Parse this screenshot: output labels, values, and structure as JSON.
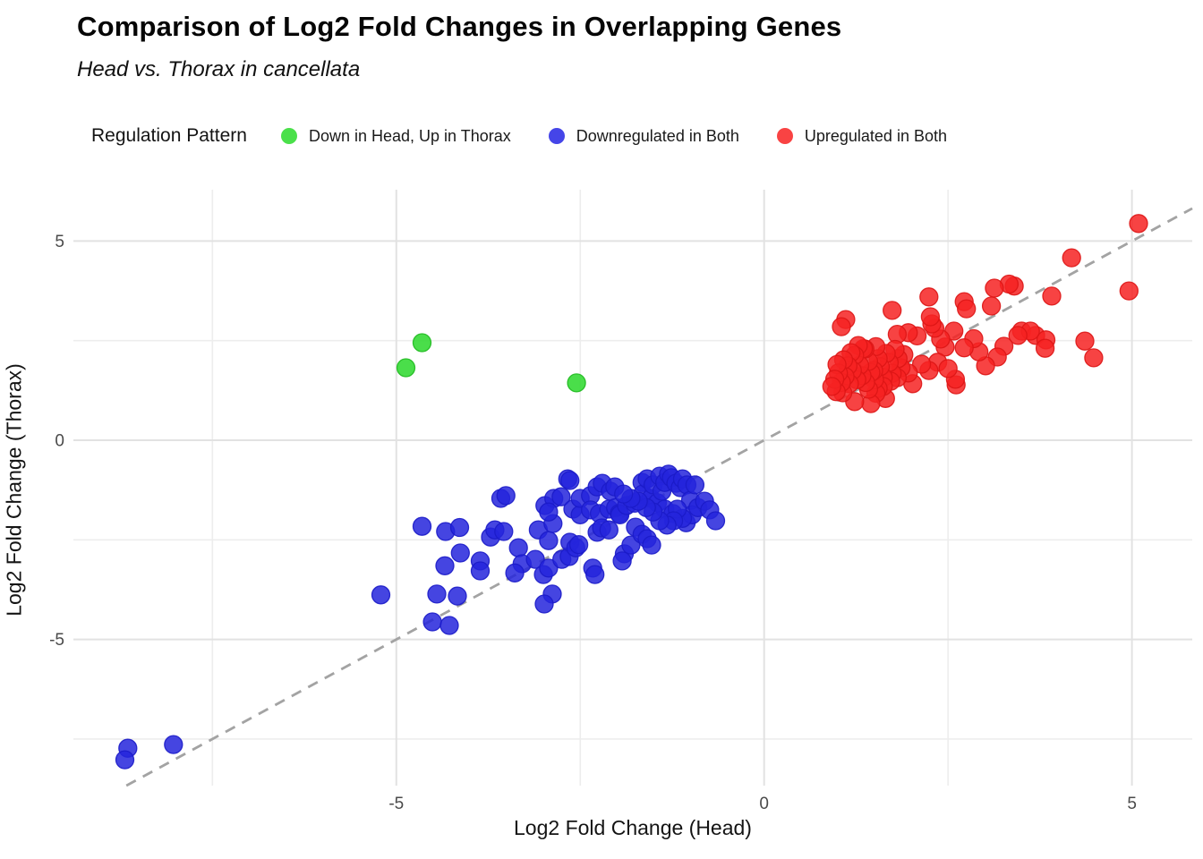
{
  "header": {
    "title": "Comparison of Log2 Fold Changes in Overlapping Genes",
    "subtitle": "Head vs. Thorax in cancellata"
  },
  "legend": {
    "title": "Regulation Pattern",
    "position": "top",
    "items": [
      {
        "label": "Down in Head, Up in Thorax",
        "color": "#4ae04a"
      },
      {
        "label": "Downregulated in Both",
        "color": "#4545e8"
      },
      {
        "label": "Upregulated in Both",
        "color": "#f94343"
      }
    ]
  },
  "colors": {
    "background": "#ffffff",
    "grid_major": "#e2e2e2",
    "grid_minor": "#ededed",
    "reference_line": "#a3a3a3",
    "tick_text": "#4a4a4a",
    "green_fill": "#2ad82a",
    "green_stroke": "#1fb91f",
    "blue_fill": "#2424dc",
    "blue_stroke": "#1b1bc8",
    "red_fill": "#f62222",
    "red_stroke": "#dd1515"
  },
  "chart_data": {
    "type": "scatter",
    "title": "Comparison of Log2 Fold Changes in Overlapping Genes",
    "subtitle": "Head vs. Thorax in cancellata",
    "xlabel": "Log2 Fold Change (Head)",
    "ylabel": "Log2 Fold Change (Thorax)",
    "xlim": [
      -9.39,
      5.82
    ],
    "ylim": [
      -8.67,
      6.29
    ],
    "x_ticks": [
      -5,
      0,
      5
    ],
    "y_ticks": [
      -5,
      0,
      5
    ],
    "x_minor": [
      -7.5,
      -2.5,
      2.5
    ],
    "y_minor": [
      -7.5,
      -2.5,
      2.5
    ],
    "grid": true,
    "legend_position": "top",
    "reference_line": {
      "kind": "identity",
      "style": "dashed",
      "color": "#a3a3a3"
    },
    "point_radius_px": 10,
    "point_alpha": 0.85,
    "series": [
      {
        "name": "Down in Head, Up in Thorax",
        "fill": "#2ad82a",
        "stroke": "#1fb91f",
        "points": [
          [
            -4.65,
            2.45
          ],
          [
            -4.87,
            1.82
          ],
          [
            -2.55,
            1.44
          ]
        ]
      },
      {
        "name": "Downregulated in Both",
        "fill": "#2424dc",
        "stroke": "#1b1bc8",
        "points": [
          [
            -8.65,
            -7.73
          ],
          [
            -8.69,
            -8.02
          ],
          [
            -8.03,
            -7.64
          ],
          [
            -5.21,
            -3.88
          ],
          [
            -4.65,
            -2.16
          ],
          [
            -4.33,
            -2.29
          ],
          [
            -4.14,
            -2.19
          ],
          [
            -4.34,
            -3.15
          ],
          [
            -4.13,
            -2.83
          ],
          [
            -4.45,
            -3.86
          ],
          [
            -4.17,
            -3.91
          ],
          [
            -4.51,
            -4.56
          ],
          [
            -4.28,
            -4.65
          ],
          [
            -3.86,
            -3.03
          ],
          [
            -3.86,
            -3.28
          ],
          [
            -3.72,
            -2.43
          ],
          [
            -3.66,
            -2.25
          ],
          [
            -3.58,
            -1.46
          ],
          [
            -3.51,
            -1.39
          ],
          [
            -3.54,
            -2.29
          ],
          [
            -3.34,
            -2.7
          ],
          [
            -3.29,
            -3.1
          ],
          [
            -3.39,
            -3.33
          ],
          [
            -3.11,
            -2.99
          ],
          [
            -3.07,
            -2.25
          ],
          [
            -2.98,
            -1.64
          ],
          [
            -2.93,
            -2.52
          ],
          [
            -2.87,
            -2.09
          ],
          [
            -2.86,
            -1.46
          ],
          [
            -2.76,
            -1.42
          ],
          [
            -2.67,
            -0.97
          ],
          [
            -2.93,
            -1.8
          ],
          [
            -3.0,
            -3.37
          ],
          [
            -2.93,
            -3.21
          ],
          [
            -2.88,
            -3.86
          ],
          [
            -2.99,
            -4.11
          ],
          [
            -2.75,
            -2.99
          ],
          [
            -2.65,
            -2.92
          ],
          [
            -2.64,
            -2.56
          ],
          [
            -2.56,
            -2.7
          ],
          [
            -2.64,
            -1.01
          ],
          [
            -2.6,
            -1.73
          ],
          [
            -2.52,
            -2.62
          ],
          [
            -2.5,
            -1.87
          ],
          [
            -2.5,
            -1.46
          ],
          [
            -2.36,
            -1.39
          ],
          [
            -2.36,
            -1.75
          ],
          [
            -2.27,
            -1.17
          ],
          [
            -2.24,
            -1.84
          ],
          [
            -2.2,
            -1.08
          ],
          [
            -2.11,
            -1.73
          ],
          [
            -2.09,
            -1.28
          ],
          [
            -2.03,
            -1.17
          ],
          [
            -2.27,
            -2.31
          ],
          [
            -2.21,
            -2.2
          ],
          [
            -2.11,
            -2.25
          ],
          [
            -2.33,
            -3.21
          ],
          [
            -2.3,
            -3.37
          ],
          [
            -2.02,
            -1.69
          ],
          [
            -1.97,
            -1.84
          ],
          [
            -1.96,
            -1.87
          ],
          [
            -1.9,
            -2.85
          ],
          [
            -1.93,
            -3.03
          ],
          [
            -1.81,
            -2.63
          ],
          [
            -1.87,
            -1.64
          ],
          [
            -1.75,
            -2.18
          ],
          [
            -1.66,
            -2.36
          ],
          [
            -1.59,
            -2.47
          ],
          [
            -1.53,
            -2.63
          ],
          [
            -1.76,
            -1.58
          ],
          [
            -1.66,
            -1.06
          ],
          [
            -1.65,
            -1.35
          ],
          [
            -1.59,
            -0.97
          ],
          [
            -1.54,
            -1.46
          ],
          [
            -1.51,
            -1.12
          ],
          [
            -1.45,
            -1.57
          ],
          [
            -1.42,
            -0.9
          ],
          [
            -1.39,
            -1.28
          ],
          [
            -1.35,
            -1.73
          ],
          [
            -1.35,
            -1.06
          ],
          [
            -1.3,
            -0.85
          ],
          [
            -1.26,
            -0.94
          ],
          [
            -1.24,
            -1.84
          ],
          [
            -1.2,
            -1.08
          ],
          [
            -1.14,
            -1.19
          ],
          [
            -1.11,
            -0.97
          ],
          [
            -1.06,
            -2.07
          ],
          [
            -1.05,
            -1.12
          ],
          [
            -1.0,
            -1.51
          ],
          [
            -0.98,
            -1.87
          ],
          [
            -0.94,
            -1.12
          ],
          [
            -0.9,
            -1.69
          ],
          [
            -0.81,
            -1.53
          ],
          [
            -0.74,
            -1.75
          ],
          [
            -0.66,
            -2.02
          ],
          [
            -1.11,
            -1.96
          ],
          [
            -1.18,
            -1.73
          ],
          [
            -1.23,
            -2.02
          ],
          [
            -1.32,
            -2.13
          ],
          [
            -1.42,
            -2.02
          ],
          [
            -1.51,
            -1.8
          ],
          [
            -1.6,
            -1.69
          ],
          [
            -1.71,
            -1.53
          ],
          [
            -1.81,
            -1.46
          ],
          [
            -1.91,
            -1.35
          ]
        ]
      },
      {
        "name": "Upregulated in Both",
        "fill": "#f62222",
        "stroke": "#dd1515",
        "points": [
          [
            5.09,
            5.44
          ],
          [
            4.18,
            4.58
          ],
          [
            4.96,
            3.75
          ],
          [
            3.91,
            3.62
          ],
          [
            3.4,
            3.87
          ],
          [
            3.33,
            3.92
          ],
          [
            3.13,
            3.82
          ],
          [
            3.09,
            3.37
          ],
          [
            3.5,
            2.74
          ],
          [
            3.69,
            2.63
          ],
          [
            3.83,
            2.52
          ],
          [
            4.36,
            2.49
          ],
          [
            4.48,
            2.07
          ],
          [
            3.82,
            2.31
          ],
          [
            3.62,
            2.74
          ],
          [
            3.45,
            2.63
          ],
          [
            3.26,
            2.36
          ],
          [
            3.17,
            2.09
          ],
          [
            3.01,
            1.87
          ],
          [
            2.92,
            2.22
          ],
          [
            2.85,
            2.55
          ],
          [
            2.72,
            2.32
          ],
          [
            2.72,
            3.48
          ],
          [
            2.75,
            3.3
          ],
          [
            2.58,
            2.74
          ],
          [
            2.46,
            2.34
          ],
          [
            2.4,
            2.54
          ],
          [
            2.36,
            1.96
          ],
          [
            2.32,
            2.81
          ],
          [
            2.28,
            2.92
          ],
          [
            2.26,
            3.1
          ],
          [
            2.24,
            3.6
          ],
          [
            2.24,
            1.75
          ],
          [
            2.14,
            1.91
          ],
          [
            2.08,
            2.62
          ],
          [
            2.02,
            1.42
          ],
          [
            1.96,
            2.7
          ],
          [
            1.96,
            1.69
          ],
          [
            1.9,
            2.15
          ],
          [
            1.86,
            1.82
          ],
          [
            1.82,
            2.05
          ],
          [
            1.81,
            2.66
          ],
          [
            1.81,
            1.57
          ],
          [
            1.78,
            2.28
          ],
          [
            1.74,
            3.26
          ],
          [
            1.74,
            1.68
          ],
          [
            1.72,
            1.48
          ],
          [
            1.7,
            1.95
          ],
          [
            1.66,
            2.18
          ],
          [
            1.65,
            1.05
          ],
          [
            1.62,
            1.58
          ],
          [
            1.62,
            1.35
          ],
          [
            1.58,
            1.85
          ],
          [
            1.55,
            2.05
          ],
          [
            1.55,
            1.3
          ],
          [
            1.52,
            2.35
          ],
          [
            1.52,
            1.18
          ],
          [
            1.5,
            1.52
          ],
          [
            1.49,
            1.75
          ],
          [
            1.45,
            1.7
          ],
          [
            1.45,
            0.92
          ],
          [
            1.42,
            1.98
          ],
          [
            1.42,
            1.28
          ],
          [
            1.38,
            1.45
          ],
          [
            1.37,
            2.29
          ],
          [
            1.35,
            2.3
          ],
          [
            1.33,
            1.62
          ],
          [
            1.3,
            1.88
          ],
          [
            1.28,
            2.38
          ],
          [
            1.26,
            1.52
          ],
          [
            1.23,
            2.13
          ],
          [
            1.23,
            0.97
          ],
          [
            1.2,
            1.75
          ],
          [
            1.18,
            2.2
          ],
          [
            1.16,
            1.42
          ],
          [
            1.14,
            1.87
          ],
          [
            1.11,
            3.03
          ],
          [
            1.1,
            1.6
          ],
          [
            1.08,
            2.02
          ],
          [
            1.07,
            1.19
          ],
          [
            1.05,
            2.85
          ],
          [
            1.05,
            1.45
          ],
          [
            1.01,
            1.69
          ],
          [
            0.99,
            1.9
          ],
          [
            0.98,
            1.22
          ],
          [
            0.96,
            1.53
          ],
          [
            0.92,
            1.35
          ],
          [
            2.61,
            1.39
          ],
          [
            2.6,
            1.53
          ],
          [
            2.5,
            1.8
          ]
        ]
      }
    ]
  }
}
